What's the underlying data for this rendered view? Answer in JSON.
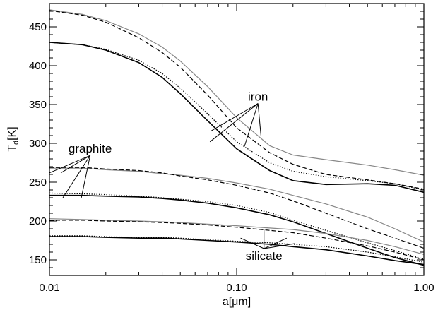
{
  "chart_data": {
    "type": "line",
    "xlabel": "a[μm]",
    "ylabel": "T_d[K]",
    "ylabel_main": "T",
    "ylabel_sub": "d",
    "ylabel_unit": "[K]",
    "xscale": "log",
    "xlim": [
      0.01,
      1.0
    ],
    "ylim": [
      130,
      480
    ],
    "grid": false,
    "x_ticks": [
      {
        "value": 0.01,
        "label": "0.01"
      },
      {
        "value": 0.1,
        "label": "0.10"
      },
      {
        "value": 1.0,
        "label": "1.00"
      }
    ],
    "y_ticks": [
      {
        "value": 150,
        "label": "150"
      },
      {
        "value": 200,
        "label": "200"
      },
      {
        "value": 250,
        "label": "250"
      },
      {
        "value": 300,
        "label": "300"
      },
      {
        "value": 350,
        "label": "350"
      },
      {
        "value": 400,
        "label": "400"
      },
      {
        "value": 450,
        "label": "450"
      }
    ],
    "x": [
      0.01,
      0.015,
      0.02,
      0.03,
      0.04,
      0.05,
      0.07,
      0.1,
      0.15,
      0.2,
      0.3,
      0.5,
      0.7,
      1.0
    ],
    "series": [
      {
        "group": "iron",
        "color": "#888888",
        "dash": "solid",
        "values": [
          472,
          466,
          458,
          441,
          424,
          406,
          373,
          333,
          297,
          285,
          279,
          272,
          266,
          259
        ]
      },
      {
        "group": "iron",
        "color": "#000000",
        "dash": "dashed",
        "values": [
          471,
          465,
          456,
          436,
          417,
          398,
          362,
          320,
          288,
          273,
          260,
          253,
          248,
          241
        ]
      },
      {
        "group": "iron",
        "color": "#000000",
        "dash": "dotted",
        "values": [
          430,
          427,
          421,
          407,
          390,
          371,
          338,
          302,
          275,
          264,
          257,
          252,
          248,
          240
        ]
      },
      {
        "group": "iron",
        "color": "#000000",
        "dash": "solid",
        "values": [
          430,
          427,
          420,
          404,
          385,
          364,
          329,
          293,
          265,
          252,
          247,
          248,
          246,
          237
        ]
      },
      {
        "group": "graphite",
        "color": "#888888",
        "dash": "solid",
        "values": [
          268,
          268,
          266,
          264,
          261,
          259,
          255,
          249,
          241,
          233,
          222,
          205,
          190,
          173
        ]
      },
      {
        "group": "graphite",
        "color": "#000000",
        "dash": "dashed",
        "values": [
          269,
          269,
          267,
          265,
          262,
          258,
          253,
          246,
          236,
          226,
          210,
          190,
          178,
          165
        ]
      },
      {
        "group": "graphite",
        "color": "#000000",
        "dash": "dotted",
        "values": [
          236,
          235,
          234,
          232,
          230,
          228,
          225,
          220,
          211,
          201,
          188,
          172,
          162,
          151
        ]
      },
      {
        "group": "graphite",
        "color": "#000000",
        "dash": "solid",
        "values": [
          233,
          233,
          232,
          231,
          229,
          227,
          223,
          217,
          208,
          199,
          184,
          165,
          153,
          143
        ]
      },
      {
        "group": "silicate",
        "color": "#888888",
        "dash": "solid",
        "values": [
          203,
          202,
          201,
          200,
          199,
          198,
          196,
          194,
          191,
          189,
          184,
          175,
          167,
          157
        ]
      },
      {
        "group": "silicate",
        "color": "#000000",
        "dash": "dashed",
        "values": [
          201,
          201,
          200,
          199,
          198,
          197,
          195,
          192,
          188,
          185,
          178,
          168,
          160,
          150
        ]
      },
      {
        "group": "silicate",
        "color": "#000000",
        "dash": "dotted",
        "values": [
          181,
          181,
          180,
          179,
          179,
          178,
          176,
          174,
          172,
          170,
          167,
          160,
          154,
          147
        ]
      },
      {
        "group": "silicate",
        "color": "#000000",
        "dash": "solid",
        "values": [
          180,
          180,
          179,
          178,
          178,
          177,
          175,
          173,
          170,
          167,
          163,
          155,
          149,
          144
        ]
      }
    ],
    "annotations": [
      {
        "text": "iron",
        "x": 0.13,
        "y": 355,
        "pointers": [
          [
            0.072,
            302
          ],
          [
            0.073,
            316
          ],
          [
            0.11,
            296
          ],
          [
            0.135,
            309
          ]
        ]
      },
      {
        "text": "graphite",
        "x": 0.0165,
        "y": 288,
        "pointers": [
          [
            0.01,
            262
          ],
          [
            0.0115,
            262
          ],
          [
            0.0118,
            230
          ],
          [
            0.0148,
            230
          ]
        ]
      },
      {
        "text": "silicate",
        "x": 0.14,
        "y": 150,
        "pointers": [
          [
            0.105,
            178
          ],
          [
            0.14,
            190
          ],
          [
            0.185,
            178
          ],
          [
            0.205,
            171
          ]
        ]
      }
    ]
  }
}
